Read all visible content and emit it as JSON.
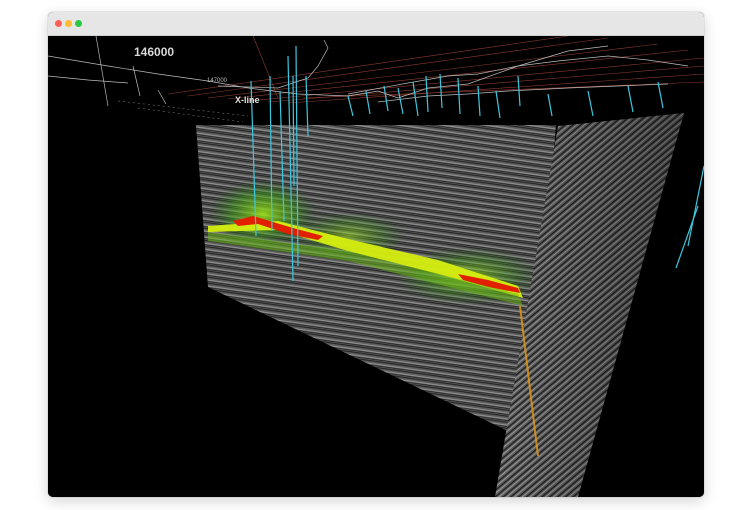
{
  "window": {
    "controls": [
      {
        "name": "close",
        "color": "#ff5f57"
      },
      {
        "name": "minimize",
        "color": "#febc2e"
      },
      {
        "name": "maximize",
        "color": "#28c840"
      }
    ]
  },
  "viewport": {
    "label_primary": "146000",
    "label_secondary": "147000",
    "label_section": "X-line",
    "colors": {
      "background": "#000000",
      "wells": "#3cc8e0",
      "grid_lines": "#b04a3a",
      "surface_lines": "#dddddd",
      "anomaly_high": "#d81e00",
      "anomaly_mid": "#e8e800",
      "anomaly_low": "#4faa1e"
    }
  }
}
